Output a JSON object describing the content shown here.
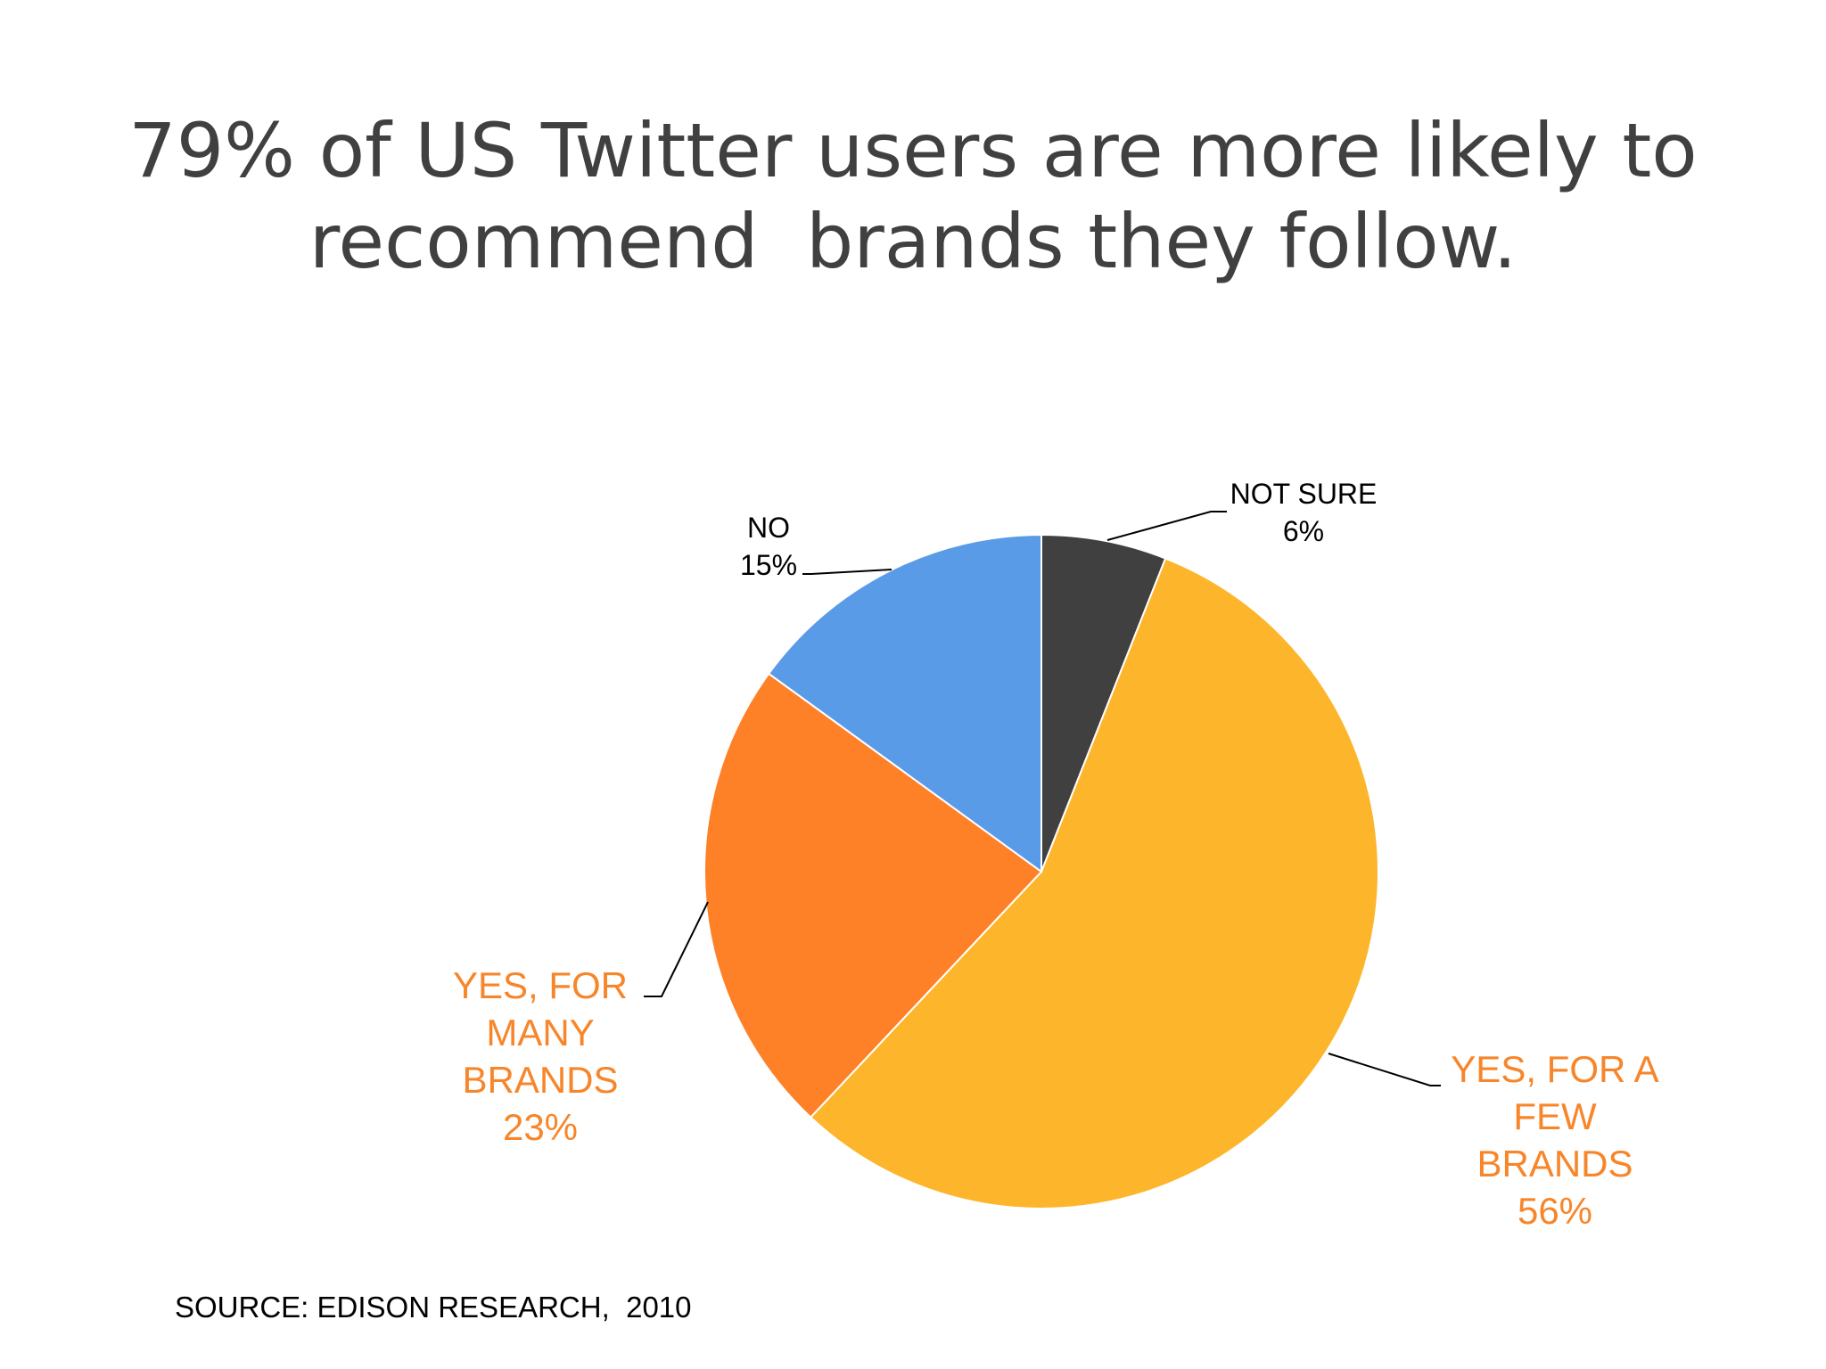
{
  "title": {
    "line1": "79% of US Twitter users are more likely to",
    "line2": "recommend  brands they follow."
  },
  "source": "SOURCE: EDISON RESEARCH,  2010",
  "chart_data": {
    "type": "pie",
    "title": "79% of US Twitter users are more likely to recommend  brands they follow.",
    "slices": [
      {
        "name": "NOT SURE",
        "value": 6,
        "value_label": "6%",
        "color": "#404040",
        "label_color": "#000000",
        "label_lines": [
          "NOT SURE",
          "6%"
        ]
      },
      {
        "name": "YES, FOR A FEW BRANDS",
        "value": 56,
        "value_label": "56%",
        "color": "#FDB52B",
        "label_color": "#F7862A",
        "label_lines": [
          "YES, FOR A",
          "FEW",
          "BRANDS",
          "56%"
        ]
      },
      {
        "name": "YES, FOR MANY BRANDS",
        "value": 23,
        "value_label": "23%",
        "color": "#FE8128",
        "label_color": "#F7862A",
        "label_lines": [
          "YES, FOR",
          "MANY",
          "BRANDS",
          "23%"
        ]
      },
      {
        "name": "NO",
        "value": 15,
        "value_label": "15%",
        "color": "#5A9BE8",
        "label_color": "#000000",
        "label_lines": [
          "NO",
          "15%"
        ]
      }
    ],
    "start_angle": "12 o'clock",
    "direction": "clockwise",
    "legend": "none"
  }
}
